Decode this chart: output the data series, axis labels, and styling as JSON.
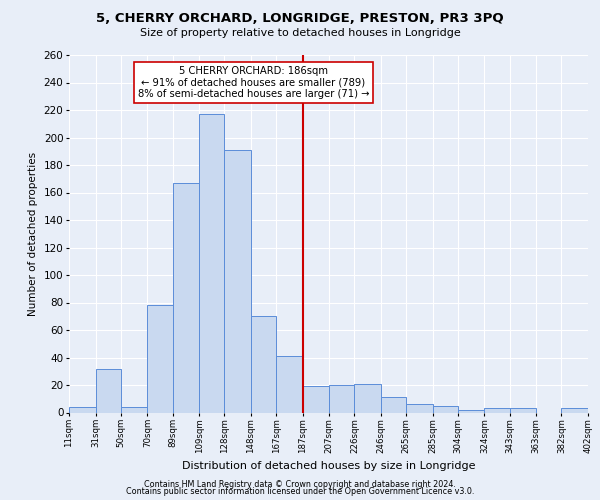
{
  "title": "5, CHERRY ORCHARD, LONGRIDGE, PRESTON, PR3 3PQ",
  "subtitle": "Size of property relative to detached houses in Longridge",
  "xlabel": "Distribution of detached houses by size in Longridge",
  "ylabel": "Number of detached properties",
  "bin_labels": [
    "11sqm",
    "31sqm",
    "50sqm",
    "70sqm",
    "89sqm",
    "109sqm",
    "128sqm",
    "148sqm",
    "167sqm",
    "187sqm",
    "207sqm",
    "226sqm",
    "246sqm",
    "265sqm",
    "285sqm",
    "304sqm",
    "324sqm",
    "343sqm",
    "363sqm",
    "382sqm",
    "402sqm"
  ],
  "bar_heights": [
    4,
    32,
    4,
    78,
    167,
    217,
    191,
    70,
    41,
    19,
    20,
    21,
    11,
    6,
    5,
    2,
    3,
    3,
    0,
    3
  ],
  "bar_color": "#c9d9f0",
  "bar_edge_color": "#5b8dd9",
  "vline_x": 187,
  "vline_color": "#cc0000",
  "annotation_title": "5 CHERRY ORCHARD: 186sqm",
  "annotation_line1": "← 91% of detached houses are smaller (789)",
  "annotation_line2": "8% of semi-detached houses are larger (71) →",
  "annotation_box_color": "#ffffff",
  "annotation_box_edge": "#cc0000",
  "ylim": [
    0,
    260
  ],
  "yticks": [
    0,
    20,
    40,
    60,
    80,
    100,
    120,
    140,
    160,
    180,
    200,
    220,
    240,
    260
  ],
  "background_color": "#e8eef8",
  "footer1": "Contains HM Land Registry data © Crown copyright and database right 2024.",
  "footer2": "Contains public sector information licensed under the Open Government Licence v3.0."
}
